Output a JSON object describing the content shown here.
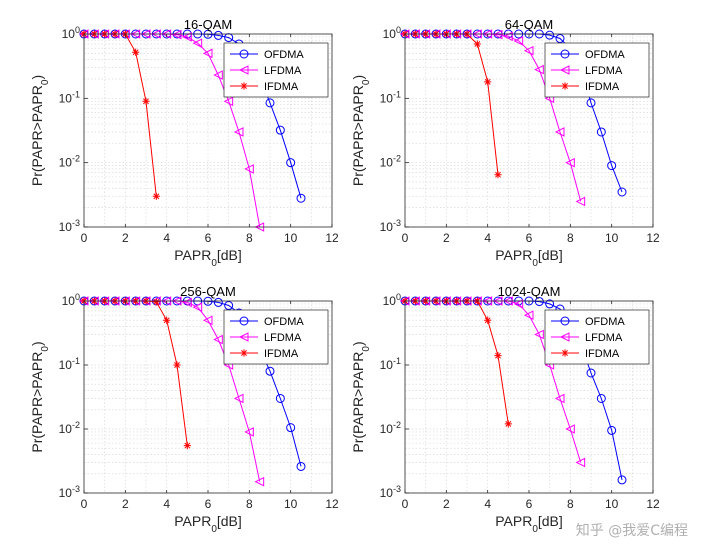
{
  "colors": {
    "ofdma": "#0000FF",
    "lfdma": "#FF00FF",
    "ifdma": "#FF0000",
    "grid": "#d9d9d9",
    "axis": "#262626"
  },
  "watermark": "知乎 @我爱C编程",
  "chart_data": [
    {
      "type": "line",
      "title": "16-QAM",
      "xlabel": "PAPR₀[dB]",
      "ylabel": "Pr(PAPR>PAPR₀)",
      "xlim": [
        0,
        12
      ],
      "ylim": [
        0.001,
        1
      ],
      "yscale": "log",
      "grid": true,
      "legend_position": "top-right",
      "xticks": [
        "0",
        "2",
        "4",
        "6",
        "8",
        "10",
        "12"
      ],
      "yticks": [
        {
          "base": "10",
          "exp": "0"
        },
        {
          "base": "10",
          "exp": "-1"
        },
        {
          "base": "10",
          "exp": "-2"
        },
        {
          "base": "10",
          "exp": "-3"
        }
      ],
      "series": [
        {
          "name": "OFDMA",
          "marker": "circle",
          "x": [
            0,
            0.5,
            1,
            1.5,
            2,
            2.5,
            3,
            3.5,
            4,
            4.5,
            5,
            5.5,
            6,
            6.5,
            7,
            7.5,
            8,
            8.5,
            9,
            9.5,
            10,
            10.5
          ],
          "y": [
            1,
            1,
            1,
            1,
            1,
            1,
            1,
            1,
            1,
            1,
            1,
            1,
            0.99,
            0.95,
            0.88,
            0.7,
            0.45,
            0.22,
            0.085,
            0.032,
            0.01,
            0.0028
          ]
        },
        {
          "name": "LFDMA",
          "marker": "triangle-left",
          "x": [
            0,
            0.5,
            1,
            1.5,
            2,
            2.5,
            3,
            3.5,
            4,
            4.5,
            5,
            5.5,
            6,
            6.5,
            7,
            7.5,
            8,
            8.5
          ],
          "y": [
            1,
            1,
            1,
            1,
            1,
            1,
            1,
            1,
            1,
            0.98,
            0.9,
            0.72,
            0.5,
            0.23,
            0.09,
            0.03,
            0.008,
            0.001
          ]
        },
        {
          "name": "IFDMA",
          "marker": "star",
          "x": [
            0,
            0.5,
            1,
            1.5,
            2,
            2.5,
            3,
            3.5
          ],
          "y": [
            1,
            1,
            1,
            1,
            1,
            0.52,
            0.09,
            0.003
          ]
        }
      ]
    },
    {
      "type": "line",
      "title": "64-QAM",
      "xlabel": "PAPR₀[dB]",
      "ylabel": "Pr(PAPR>PAPR₀)",
      "xlim": [
        0,
        12
      ],
      "ylim": [
        0.001,
        1
      ],
      "yscale": "log",
      "grid": true,
      "legend_position": "top-right",
      "xticks": [
        "0",
        "2",
        "4",
        "6",
        "8",
        "10",
        "12"
      ],
      "yticks": [
        {
          "base": "10",
          "exp": "0"
        },
        {
          "base": "10",
          "exp": "-1"
        },
        {
          "base": "10",
          "exp": "-2"
        },
        {
          "base": "10",
          "exp": "-3"
        }
      ],
      "series": [
        {
          "name": "OFDMA",
          "marker": "circle",
          "x": [
            0,
            0.5,
            1,
            1.5,
            2,
            2.5,
            3,
            3.5,
            4,
            4.5,
            5,
            5.5,
            6,
            6.5,
            7,
            7.5,
            8,
            8.5,
            9,
            9.5,
            10,
            10.5
          ],
          "y": [
            1,
            1,
            1,
            1,
            1,
            1,
            1,
            1,
            1,
            1,
            1,
            1,
            1,
            1,
            0.96,
            0.85,
            0.6,
            0.3,
            0.085,
            0.03,
            0.009,
            0.0035
          ]
        },
        {
          "name": "LFDMA",
          "marker": "triangle-left",
          "x": [
            0,
            0.5,
            1,
            1.5,
            2,
            2.5,
            3,
            3.5,
            4,
            4.5,
            5,
            5.5,
            6,
            6.5,
            7,
            7.5,
            8,
            8.5
          ],
          "y": [
            1,
            1,
            1,
            1,
            1,
            1,
            1,
            1,
            1,
            0.98,
            0.92,
            0.78,
            0.55,
            0.28,
            0.1,
            0.03,
            0.01,
            0.0025
          ]
        },
        {
          "name": "IFDMA",
          "marker": "star",
          "x": [
            0,
            0.5,
            1,
            1.5,
            2,
            2.5,
            3,
            3.5,
            4,
            4.5
          ],
          "y": [
            1,
            1,
            1,
            1,
            1,
            1,
            1,
            0.7,
            0.18,
            0.0065
          ]
        }
      ]
    },
    {
      "type": "line",
      "title": "256-QAM",
      "xlabel": "PAPR₀[dB]",
      "ylabel": "Pr(PAPR>PAPR₀)",
      "xlim": [
        0,
        12
      ],
      "ylim": [
        0.001,
        1
      ],
      "yscale": "log",
      "grid": true,
      "legend_position": "top-right",
      "xticks": [
        "0",
        "2",
        "4",
        "6",
        "8",
        "10",
        "12"
      ],
      "yticks": [
        {
          "base": "10",
          "exp": "0"
        },
        {
          "base": "10",
          "exp": "-1"
        },
        {
          "base": "10",
          "exp": "-2"
        },
        {
          "base": "10",
          "exp": "-3"
        }
      ],
      "series": [
        {
          "name": "OFDMA",
          "marker": "circle",
          "x": [
            0,
            0.5,
            1,
            1.5,
            2,
            2.5,
            3,
            3.5,
            4,
            4.5,
            5,
            5.5,
            6,
            6.5,
            7,
            7.5,
            8,
            8.5,
            9,
            9.5,
            10,
            10.5
          ],
          "y": [
            1,
            1,
            1,
            1,
            1,
            1,
            1,
            1,
            1,
            1,
            1,
            1,
            0.99,
            0.95,
            0.85,
            0.65,
            0.4,
            0.18,
            0.08,
            0.03,
            0.0105,
            0.0026
          ]
        },
        {
          "name": "LFDMA",
          "marker": "triangle-left",
          "x": [
            0,
            0.5,
            1,
            1.5,
            2,
            2.5,
            3,
            3.5,
            4,
            4.5,
            5,
            5.5,
            6,
            6.5,
            7,
            7.5,
            8,
            8.5
          ],
          "y": [
            1,
            1,
            1,
            1,
            1,
            1,
            1,
            1,
            1,
            1,
            0.95,
            0.8,
            0.5,
            0.25,
            0.1,
            0.03,
            0.009,
            0.0015
          ]
        },
        {
          "name": "IFDMA",
          "marker": "star",
          "x": [
            0,
            0.5,
            1,
            1.5,
            2,
            2.5,
            3,
            3.5,
            4,
            4.5,
            5
          ],
          "y": [
            1,
            1,
            1,
            1,
            1,
            1,
            1,
            0.97,
            0.5,
            0.1,
            0.0055
          ]
        }
      ]
    },
    {
      "type": "line",
      "title": "1024-QAM",
      "xlabel": "PAPR₀[dB]",
      "ylabel": "Pr(PAPR>PAPR₀)",
      "xlim": [
        0,
        12
      ],
      "ylim": [
        0.001,
        1
      ],
      "yscale": "log",
      "grid": true,
      "legend_position": "top-right",
      "xticks": [
        "0",
        "2",
        "4",
        "6",
        "8",
        "10",
        "12"
      ],
      "yticks": [
        {
          "base": "10",
          "exp": "0"
        },
        {
          "base": "10",
          "exp": "-1"
        },
        {
          "base": "10",
          "exp": "-2"
        },
        {
          "base": "10",
          "exp": "-3"
        }
      ],
      "series": [
        {
          "name": "OFDMA",
          "marker": "circle",
          "x": [
            0,
            0.5,
            1,
            1.5,
            2,
            2.5,
            3,
            3.5,
            4,
            4.5,
            5,
            5.5,
            6,
            6.5,
            7,
            7.5,
            8,
            8.5,
            9,
            9.5,
            10,
            10.5
          ],
          "y": [
            1,
            1,
            1,
            1,
            1,
            1,
            1,
            1,
            1,
            1,
            1,
            1,
            1,
            0.98,
            0.9,
            0.75,
            0.5,
            0.22,
            0.075,
            0.03,
            0.0095,
            0.0016
          ]
        },
        {
          "name": "LFDMA",
          "marker": "triangle-left",
          "x": [
            0,
            0.5,
            1,
            1.5,
            2,
            2.5,
            3,
            3.5,
            4,
            4.5,
            5,
            5.5,
            6,
            6.5,
            7,
            7.5,
            8,
            8.5
          ],
          "y": [
            1,
            1,
            1,
            1,
            1,
            1,
            1,
            1,
            1,
            1,
            1,
            0.9,
            0.6,
            0.3,
            0.1,
            0.03,
            0.01,
            0.003
          ]
        },
        {
          "name": "IFDMA",
          "marker": "star",
          "x": [
            0,
            0.5,
            1,
            1.5,
            2,
            2.5,
            3,
            3.5,
            4,
            4.5,
            5
          ],
          "y": [
            1,
            1,
            1,
            1,
            1,
            1,
            1,
            1,
            0.5,
            0.14,
            0.012
          ]
        }
      ]
    }
  ]
}
